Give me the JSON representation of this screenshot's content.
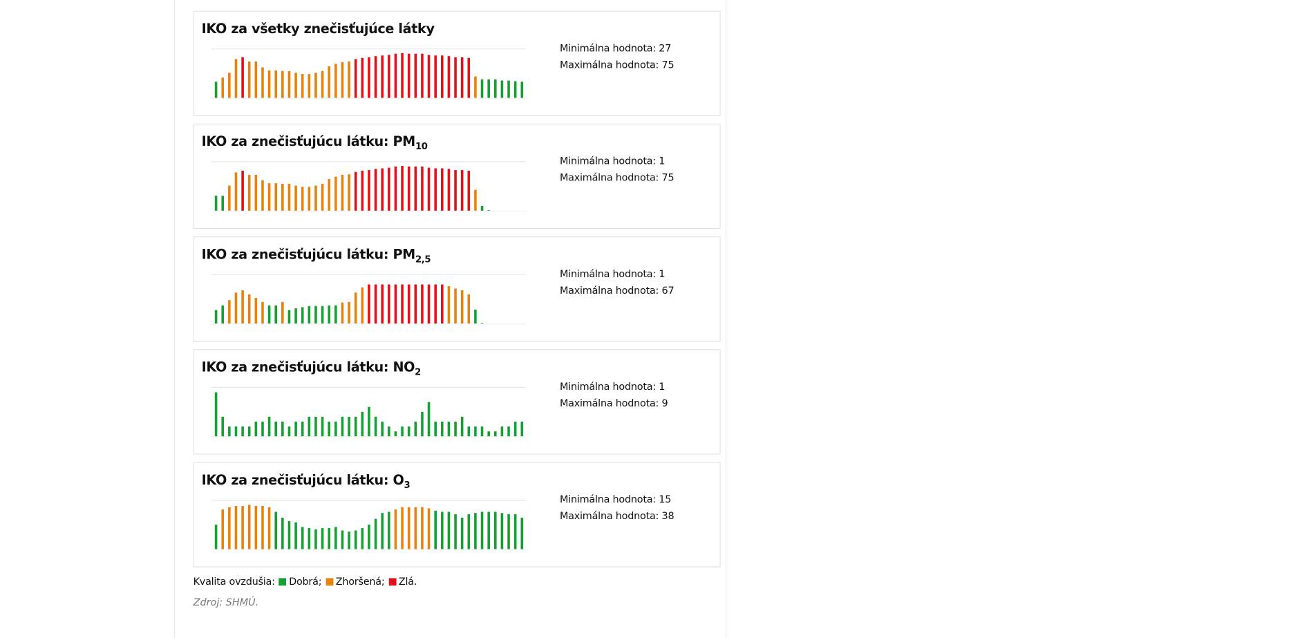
{
  "chart_data": [
    {
      "type": "bar",
      "title": "IKO za všetky znečisťujúce látky",
      "min_label": "Minimálna hodnota:",
      "min": 27,
      "max_label": "Maximálna hodnota:",
      "max": 75,
      "ylim": [
        0,
        82
      ],
      "values": [
        27,
        34,
        42,
        65,
        68,
        61,
        61,
        51,
        46,
        46,
        45,
        45,
        42,
        40,
        40,
        42,
        45,
        53,
        57,
        60,
        61,
        65,
        67,
        68,
        70,
        71,
        72,
        74,
        75,
        74,
        74,
        74,
        72,
        71,
        71,
        70,
        68,
        68,
        67,
        36,
        31,
        31,
        31,
        29,
        29,
        28,
        27
      ],
      "colors": [
        "#16a034",
        "#e6820e",
        "#e6820e",
        "#e6820e",
        "#e3101a",
        "#e6820e",
        "#e6820e",
        "#e6820e",
        "#e6820e",
        "#e6820e",
        "#e6820e",
        "#e6820e",
        "#e6820e",
        "#e6820e",
        "#e6820e",
        "#e6820e",
        "#e6820e",
        "#e6820e",
        "#e6820e",
        "#e6820e",
        "#e6820e",
        "#e3101a",
        "#e3101a",
        "#e3101a",
        "#e3101a",
        "#e3101a",
        "#e3101a",
        "#e3101a",
        "#e3101a",
        "#e3101a",
        "#e3101a",
        "#e3101a",
        "#e3101a",
        "#e3101a",
        "#e3101a",
        "#e3101a",
        "#e3101a",
        "#e3101a",
        "#e3101a",
        "#e6820e",
        "#16a034",
        "#16a034",
        "#16a034",
        "#16a034",
        "#16a034",
        "#16a034",
        "#16a034"
      ]
    },
    {
      "type": "bar",
      "title": "IKO za znečisťujúcu látku: PM",
      "title_sub": "10",
      "min_label": "Minimálna hodnota:",
      "min": 1,
      "max_label": "Maximálna hodnota:",
      "max": 75,
      "ylim": [
        0,
        82
      ],
      "values": [
        25,
        25,
        42,
        64,
        67,
        60,
        60,
        51,
        46,
        46,
        45,
        45,
        42,
        40,
        40,
        42,
        45,
        53,
        57,
        60,
        61,
        65,
        67,
        68,
        70,
        71,
        72,
        74,
        75,
        74,
        74,
        74,
        72,
        71,
        71,
        70,
        68,
        68,
        67,
        35,
        8,
        1
      ],
      "colors": [
        "#16a034",
        "#16a034",
        "#e6820e",
        "#e6820e",
        "#e3101a",
        "#e6820e",
        "#e6820e",
        "#e6820e",
        "#e6820e",
        "#e6820e",
        "#e6820e",
        "#e6820e",
        "#e6820e",
        "#e6820e",
        "#e6820e",
        "#e6820e",
        "#e6820e",
        "#e6820e",
        "#e6820e",
        "#e6820e",
        "#e6820e",
        "#e3101a",
        "#e3101a",
        "#e3101a",
        "#e3101a",
        "#e3101a",
        "#e3101a",
        "#e3101a",
        "#e3101a",
        "#e3101a",
        "#e3101a",
        "#e3101a",
        "#e3101a",
        "#e3101a",
        "#e3101a",
        "#e3101a",
        "#e3101a",
        "#e3101a",
        "#e3101a",
        "#e6820e",
        "#16a034",
        "#16a034"
      ]
    },
    {
      "type": "bar",
      "title": "IKO za znečisťujúcu látku: PM",
      "title_sub": "2,5",
      "min_label": "Minimálna hodnota:",
      "min": 1,
      "max_label": "Maximálna hodnota:",
      "max": 67,
      "ylim": [
        0,
        84
      ],
      "values": [
        23,
        31,
        40,
        53,
        57,
        50,
        44,
        37,
        31,
        31,
        37,
        23,
        26,
        28,
        30,
        30,
        30,
        31,
        31,
        36,
        37,
        53,
        62,
        67,
        67,
        67,
        67,
        67,
        67,
        67,
        67,
        67,
        67,
        67,
        67,
        64,
        60,
        57,
        50,
        24,
        1
      ],
      "colors": [
        "#16a034",
        "#16a034",
        "#e6820e",
        "#e6820e",
        "#e6820e",
        "#e6820e",
        "#e6820e",
        "#e6820e",
        "#16a034",
        "#16a034",
        "#e6820e",
        "#16a034",
        "#16a034",
        "#16a034",
        "#16a034",
        "#16a034",
        "#16a034",
        "#16a034",
        "#16a034",
        "#e6820e",
        "#e6820e",
        "#e6820e",
        "#e6820e",
        "#e3101a",
        "#e3101a",
        "#e3101a",
        "#e3101a",
        "#e3101a",
        "#e3101a",
        "#e3101a",
        "#e3101a",
        "#e3101a",
        "#e3101a",
        "#e3101a",
        "#e3101a",
        "#e6820e",
        "#e6820e",
        "#e6820e",
        "#e6820e",
        "#16a034",
        "#16a034"
      ]
    },
    {
      "type": "bar",
      "title": "IKO za znečisťujúcu látku: NO",
      "title_sub": "2",
      "min_label": "Minimálna hodnota:",
      "min": 1,
      "max_label": "Maximálna hodnota:",
      "max": 9,
      "ylim": [
        0,
        10
      ],
      "values": [
        9,
        4,
        2,
        2,
        2,
        2,
        3,
        3,
        4,
        3,
        3,
        2,
        3,
        3,
        4,
        4,
        4,
        3,
        3,
        4,
        4,
        4,
        5,
        6,
        4,
        3,
        2,
        1,
        2,
        2,
        3,
        5,
        7,
        3,
        3,
        3,
        3,
        4,
        2,
        2,
        2,
        1,
        1,
        2,
        2,
        3,
        3
      ],
      "color": "#16a034"
    },
    {
      "type": "bar",
      "title": "IKO za znečisťujúcu látku: O",
      "title_sub": "3",
      "min_label": "Minimálna hodnota:",
      "min": 15,
      "max_label": "Maximálna hodnota:",
      "max": 38,
      "ylim": [
        0,
        42
      ],
      "values": [
        21,
        34,
        36,
        37,
        37,
        38,
        37,
        37,
        36,
        32,
        27,
        24,
        23,
        19,
        18,
        17,
        18,
        18,
        19,
        16,
        15,
        16,
        18,
        21,
        26,
        31,
        32,
        34,
        36,
        36,
        36,
        36,
        35,
        33,
        32,
        32,
        30,
        27,
        30,
        31,
        32,
        32,
        32,
        31,
        30,
        30,
        27
      ],
      "colors": [
        "#16a034",
        "#e6820e",
        "#e6820e",
        "#e6820e",
        "#e6820e",
        "#e6820e",
        "#e6820e",
        "#e6820e",
        "#e6820e",
        "#16a034",
        "#16a034",
        "#16a034",
        "#16a034",
        "#16a034",
        "#16a034",
        "#16a034",
        "#16a034",
        "#16a034",
        "#16a034",
        "#16a034",
        "#16a034",
        "#16a034",
        "#16a034",
        "#16a034",
        "#16a034",
        "#16a034",
        "#16a034",
        "#e6820e",
        "#e6820e",
        "#e6820e",
        "#e6820e",
        "#e6820e",
        "#e6820e",
        "#16a034",
        "#16a034",
        "#16a034",
        "#16a034",
        "#16a034",
        "#16a034",
        "#16a034",
        "#16a034",
        "#16a034",
        "#16a034",
        "#16a034",
        "#16a034",
        "#16a034",
        "#16a034"
      ]
    }
  ],
  "legend": {
    "label": "Kvalita ovzdušia:",
    "items": [
      {
        "name": "Dobrá;",
        "color": "#16a034"
      },
      {
        "name": "Zhoršená;",
        "color": "#e6820e"
      },
      {
        "name": "Zlá.",
        "color": "#e3101a"
      }
    ]
  },
  "source": "Zdroj: SHMÚ."
}
